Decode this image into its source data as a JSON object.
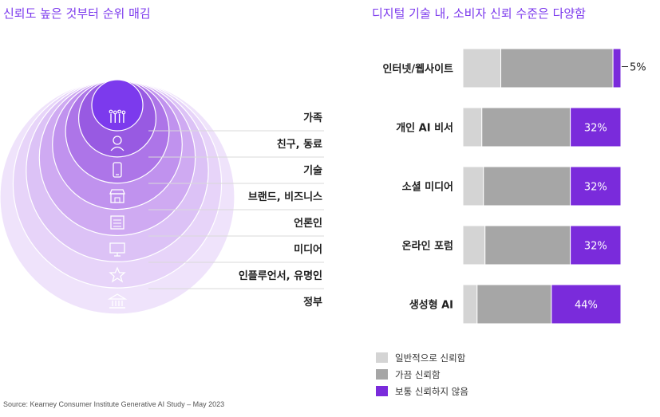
{
  "left_title": "신뢰도 높은 것부터 순위 매김",
  "right_title": "디지털 기술 내, 소비자 신뢰 수준은 다양함",
  "source": "Source: Kearney Consumer Institute Generative AI Study – May 2023",
  "trust_rank": [
    {
      "label": "가족",
      "icon": "family-icon"
    },
    {
      "label": "친구, 동료",
      "icon": "friend-icon"
    },
    {
      "label": "기술",
      "icon": "smartphone-icon"
    },
    {
      "label": "브랜드, 비즈니스",
      "icon": "storefront-icon"
    },
    {
      "label": "언론인",
      "icon": "newspaper-icon"
    },
    {
      "label": "미디어",
      "icon": "media-screen-icon"
    },
    {
      "label": "인플루언서, 유명인",
      "icon": "star-icon"
    },
    {
      "label": "정부",
      "icon": "government-building-icon"
    }
  ],
  "chart_data": {
    "type": "bar",
    "orientation": "horizontal",
    "stacked": true,
    "categories": [
      "인터넷/웹사이트",
      "개인 AI 비서",
      "소셜 미디어",
      "온라인 포럼",
      "생성형 AI"
    ],
    "series": [
      {
        "name": "일반적으로 신뢰함",
        "color": "#d4d4d4",
        "values": [
          24,
          12,
          13,
          14,
          9
        ]
      },
      {
        "name": "가끔 신뢰함",
        "color": "#a6a6a6",
        "values": [
          71,
          56,
          55,
          54,
          47
        ]
      },
      {
        "name": "보통 신뢰하지 않음",
        "color": "#7a2bdb",
        "values": [
          5,
          32,
          32,
          32,
          44
        ]
      }
    ],
    "data_labels": [
      "5%",
      "32%",
      "32%",
      "32%",
      "44%"
    ],
    "xlim": [
      0,
      100
    ],
    "legend_position": "bottom-left"
  }
}
